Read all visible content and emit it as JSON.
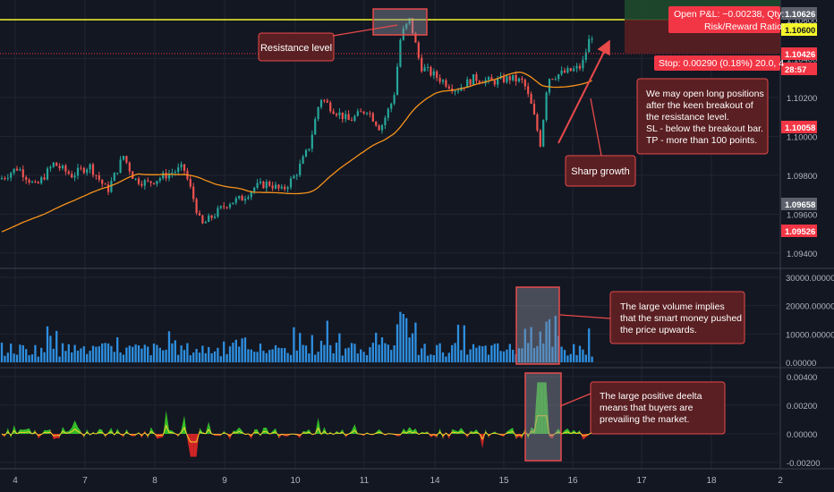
{
  "chart_data": {
    "type": "candlestick",
    "panes": {
      "price": {
        "y_ticks": [
          "1.10600",
          "1.10400",
          "1.10200",
          "1.10000",
          "1.09800",
          "1.09600",
          "1.09400"
        ],
        "price_tags": [
          {
            "text": "1.10626",
            "color": "#5d606b",
            "text_color": "#ffffff"
          },
          {
            "text": "1.10600",
            "color": "#f5f52a",
            "text_color": "#131722"
          },
          {
            "text": "1.10426",
            "color": "#f23645",
            "text_color": "#ffffff"
          },
          {
            "text": "28:57",
            "color": "#f23645",
            "text_color": "#ffffff"
          },
          {
            "text": "1.10058",
            "color": "#f23645",
            "text_color": "#ffffff"
          },
          {
            "text": "1.09658",
            "color": "#5d606b",
            "text_color": "#ffffff"
          },
          {
            "text": "1.09526",
            "color": "#f23645",
            "text_color": "#ffffff"
          }
        ],
        "resistance_level": 1.106
      },
      "volume": {
        "y_ticks": [
          "30000.00000",
          "20000.00000",
          "10000.00000",
          "0.00000"
        ]
      },
      "delta": {
        "y_ticks": [
          "0.00400",
          "0.00200",
          "0.00000",
          "-0.00200"
        ]
      }
    },
    "x_ticks": [
      "4",
      "7",
      "8",
      "9",
      "10",
      "11",
      "14",
      "15",
      "16",
      "17",
      "18",
      "2"
    ],
    "position_box": {
      "line1": "Open P&L: −0.00238, Qty:",
      "line2": "Risk/Reward Ratio:",
      "stop": "Stop: 0.00290 (0.18%) 20.0, 4"
    },
    "annotations": {
      "resistance": "Resistance level",
      "sharp_growth": "Sharp growth",
      "long_idea": [
        "We may open long positions",
        "after the keen breakout of",
        "the resistance level.",
        "SL - below the breakout bar.",
        "TP - more than 100 points."
      ],
      "volume_note": [
        "The large volume implies",
        "that the smart money pushed",
        "the price upwards."
      ],
      "delta_note": [
        "The large positive deelta",
        "means that buyers are",
        "prevailing the market."
      ]
    },
    "colors": {
      "background": "#131722",
      "up": "#26a69a",
      "down": "#ef5350",
      "ma": "#f7931a",
      "resistance": "#f5f52a",
      "volume": "#2e8fe0",
      "delta_pos": "#3bd12b",
      "delta_neg": "#e82727",
      "callout_fill": "#5a1f22",
      "callout_border": "#e84a4a"
    }
  }
}
